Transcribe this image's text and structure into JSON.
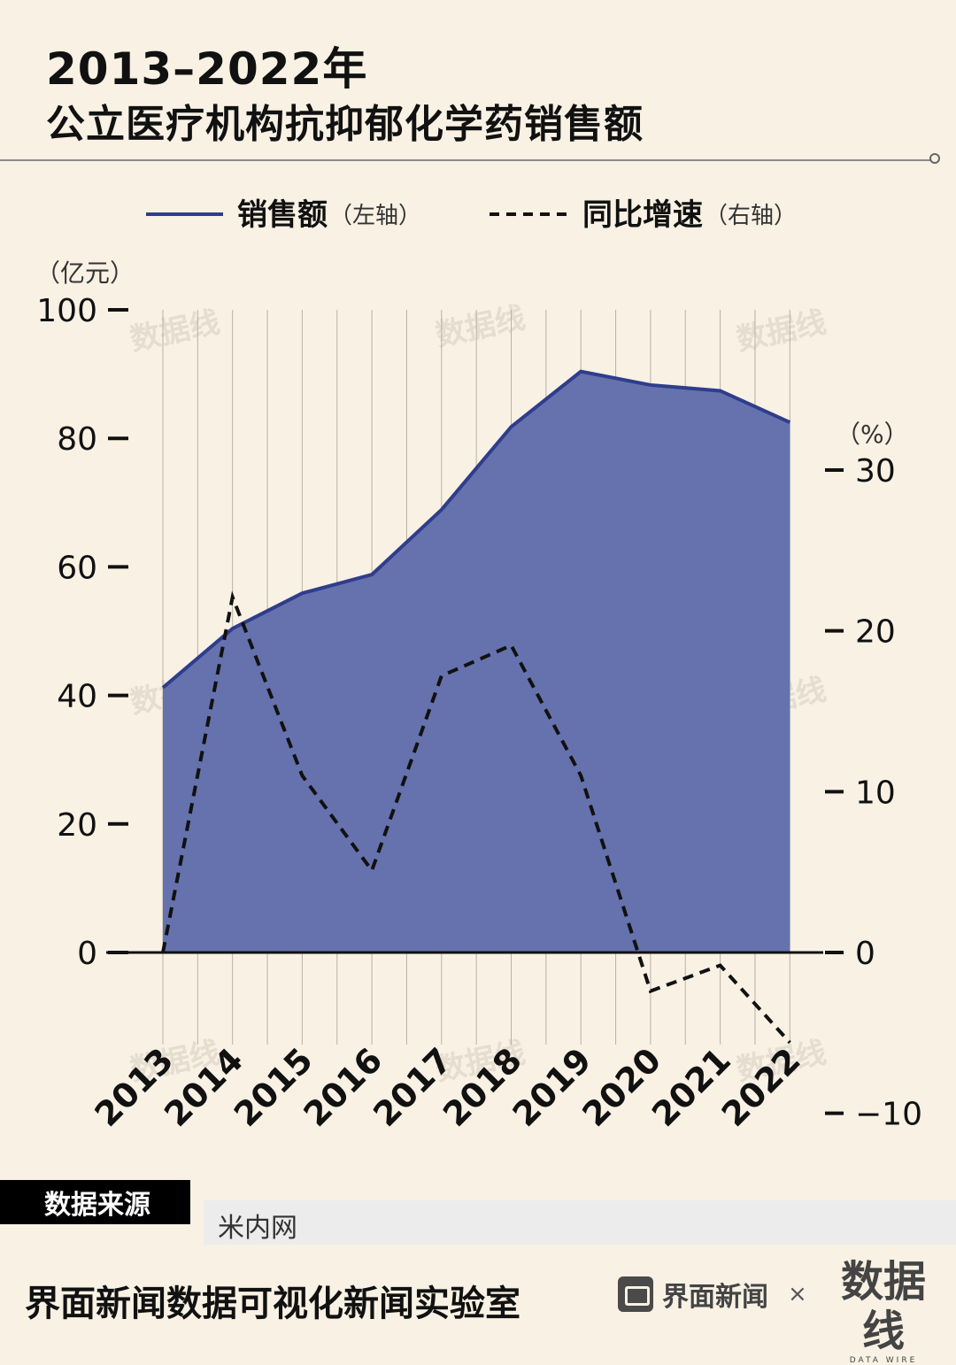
{
  "title": {
    "line1": "2013–2022年",
    "line2": "公立医疗机构抗抑郁化学药销售额"
  },
  "legend": {
    "sales_label": "销售额",
    "sales_axis": "（左轴）",
    "growth_label": "同比增速",
    "growth_axis": "（右轴）"
  },
  "source": {
    "label": "数据来源",
    "value": "米内网"
  },
  "footer": {
    "lab": "界面新闻数据可视化新闻实验室",
    "brand": "界面新闻",
    "times": "×",
    "logo_cn": "数据线",
    "logo_en": "DATA WIRE"
  },
  "watermark": "数据线",
  "colors": {
    "background": "#f8f1e4",
    "area_fill": "#6572ad",
    "area_line": "#2f3d8c",
    "dashed_line": "#111111"
  },
  "chart_data": {
    "type": "area",
    "x": [
      "2013",
      "2014",
      "2015",
      "2016",
      "2017",
      "2018",
      "2019",
      "2020",
      "2021",
      "2022"
    ],
    "series": [
      {
        "name": "销售额",
        "axis": "left",
        "type": "area",
        "values": [
          41.2,
          50.4,
          55.9,
          58.8,
          68.9,
          81.8,
          90.4,
          88.3,
          87.4,
          82.5
        ]
      },
      {
        "name": "同比增速",
        "axis": "right",
        "type": "line",
        "style": "dashed",
        "values": [
          0,
          22.1,
          11.0,
          5.1,
          17.2,
          19.1,
          11.0,
          -2.4,
          -0.8,
          -5.6
        ]
      }
    ],
    "left_axis": {
      "unit": "（亿元）",
      "ticks": [
        0,
        20,
        40,
        60,
        80,
        100
      ],
      "range": [
        0,
        100
      ]
    },
    "right_axis": {
      "unit": "（%）",
      "ticks": [
        -10,
        0,
        10,
        20,
        30
      ],
      "range": [
        -10,
        30
      ]
    },
    "grid": "vertical",
    "legend_position": "top"
  }
}
